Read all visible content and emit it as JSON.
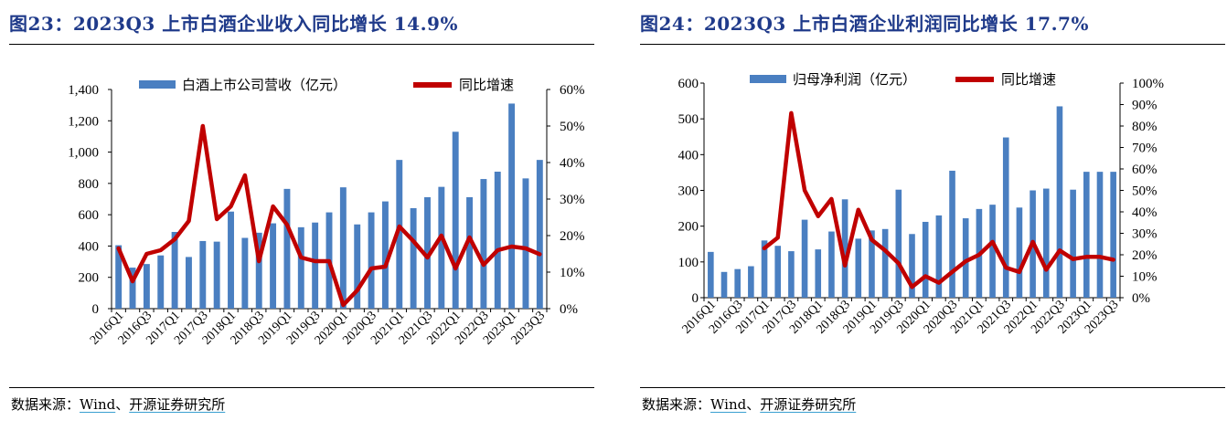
{
  "panels": {
    "left": {
      "title": "图23：2023Q3 上市白酒企业收入同比增长 14.9%",
      "source_prefix": "数据来源：",
      "source_wind": "Wind",
      "source_sep": "、",
      "source_org": "开源证券研究所"
    },
    "right": {
      "title": "图24：2023Q3 上市白酒企业利润同比增长 17.7%",
      "source_prefix": "数据来源：",
      "source_wind": "Wind",
      "source_sep": "、",
      "source_org": "开源证券研究所"
    }
  },
  "colors": {
    "bar": "#4a7fc1",
    "line": "#c00000",
    "title": "#1f3a8a"
  },
  "chart_data": [
    {
      "type": "bar+line",
      "categories": [
        "2016Q1",
        "2016Q2",
        "2016Q3",
        "2016Q4",
        "2017Q1",
        "2017Q2",
        "2017Q3",
        "2017Q4",
        "2018Q1",
        "2018Q2",
        "2018Q3",
        "2018Q4",
        "2019Q1",
        "2019Q2",
        "2019Q3",
        "2019Q4",
        "2020Q1",
        "2020Q2",
        "2020Q3",
        "2020Q4",
        "2021Q1",
        "2021Q2",
        "2021Q3",
        "2021Q4",
        "2022Q1",
        "2022Q2",
        "2022Q3",
        "2022Q4",
        "2023Q1",
        "2023Q2",
        "2023Q3"
      ],
      "tick_labels": [
        "2016Q1",
        "2016Q3",
        "2017Q1",
        "2017Q3",
        "2018Q1",
        "2018Q3",
        "2019Q1",
        "2019Q3",
        "2020Q1",
        "2020Q3",
        "2021Q1",
        "2021Q3",
        "2022Q1",
        "2022Q3",
        "2023Q1",
        "2023Q3"
      ],
      "series": [
        {
          "name": "白酒上市公司营收（亿元）",
          "type": "bar",
          "axis": "left",
          "values": [
            405,
            262,
            285,
            340,
            490,
            330,
            432,
            428,
            620,
            452,
            485,
            545,
            765,
            520,
            550,
            615,
            775,
            538,
            615,
            685,
            950,
            642,
            712,
            778,
            1130,
            712,
            828,
            875,
            1310,
            832,
            950
          ]
        },
        {
          "name": "同比增速",
          "type": "line",
          "axis": "right",
          "values": [
            16.5,
            7.5,
            15,
            16,
            19,
            24,
            50,
            24.5,
            28,
            36.5,
            13,
            28,
            23,
            14,
            13,
            13,
            1,
            5,
            11,
            11.5,
            22.5,
            18.5,
            14,
            20,
            11,
            19.5,
            12,
            16,
            17,
            16.5,
            14.9
          ]
        }
      ],
      "y_left": {
        "min": 0,
        "max": 1400,
        "ticks": [
          "0",
          "200",
          "400",
          "600",
          "800",
          "1,000",
          "1,200",
          "1,400"
        ]
      },
      "y_right": {
        "min": 0,
        "max": 60,
        "ticks": [
          "0%",
          "10%",
          "20%",
          "30%",
          "40%",
          "50%",
          "60%"
        ]
      },
      "legend_position": "top"
    },
    {
      "type": "bar+line",
      "categories": [
        "2016Q1",
        "2016Q2",
        "2016Q3",
        "2016Q4",
        "2017Q1",
        "2017Q2",
        "2017Q3",
        "2017Q4",
        "2018Q1",
        "2018Q2",
        "2018Q3",
        "2018Q4",
        "2019Q1",
        "2019Q2",
        "2019Q3",
        "2019Q4",
        "2020Q1",
        "2020Q2",
        "2020Q3",
        "2020Q4",
        "2021Q1",
        "2021Q2",
        "2021Q3",
        "2021Q4",
        "2022Q1",
        "2022Q2",
        "2022Q3",
        "2022Q4",
        "2023Q1",
        "2023Q2",
        "2023Q3"
      ],
      "tick_labels": [
        "2016Q1",
        "2016Q3",
        "2017Q1",
        "2017Q3",
        "2018Q1",
        "2018Q3",
        "2019Q1",
        "2019Q3",
        "2020Q1",
        "2020Q3",
        "2021Q1",
        "2021Q3",
        "2022Q1",
        "2022Q3",
        "2023Q1",
        "2023Q3"
      ],
      "series": [
        {
          "name": "归母净利润（亿元）",
          "type": "bar",
          "axis": "left",
          "values": [
            128,
            72,
            80,
            88,
            160,
            145,
            130,
            218,
            135,
            185,
            275,
            165,
            188,
            192,
            302,
            178,
            212,
            230,
            355,
            222,
            248,
            260,
            448,
            252,
            300,
            305,
            535,
            302,
            352,
            352,
            352
          ]
        },
        {
          "name": "同比增速",
          "type": "line",
          "axis": "right",
          "values": [
            null,
            null,
            null,
            null,
            23,
            28,
            86,
            50,
            38,
            46,
            15,
            41,
            27,
            22,
            16,
            5,
            10,
            7,
            12,
            17,
            20,
            26,
            14,
            12,
            26,
            13,
            22,
            18,
            19,
            19,
            17.7
          ]
        }
      ],
      "y_left": {
        "min": 0,
        "max": 600,
        "ticks": [
          "0",
          "100",
          "200",
          "300",
          "400",
          "500",
          "600"
        ]
      },
      "y_right": {
        "min": 0,
        "max": 100,
        "ticks": [
          "0%",
          "10%",
          "20%",
          "30%",
          "40%",
          "50%",
          "60%",
          "70%",
          "80%",
          "90%",
          "100%"
        ]
      },
      "legend_position": "top"
    }
  ]
}
